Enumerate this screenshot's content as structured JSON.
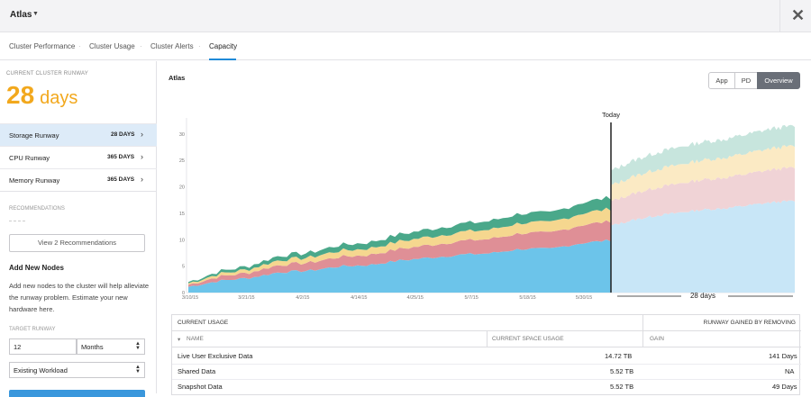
{
  "app": {
    "title": "Atlas",
    "close_label": "✕"
  },
  "tabs": [
    "Cluster Performance",
    "Cluster Usage",
    "Cluster Alerts",
    "Capacity"
  ],
  "sidebar": {
    "current_label": "CURRENT CLUSTER RUNWAY",
    "current_value": "28",
    "current_unit": "days",
    "runways": [
      {
        "name": "Storage Runway",
        "days": "28 DAYS"
      },
      {
        "name": "CPU Runway",
        "days": "365 DAYS"
      },
      {
        "name": "Memory Runway",
        "days": "365 DAYS"
      }
    ],
    "recommendations_label": "RECOMMENDATIONS",
    "recommendations_button": "View 2 Recommendations",
    "add_nodes_title": "Add New Nodes",
    "add_nodes_desc": "Add new nodes to the cluster will help alleviate the runway problem. Estimate your new hardware here.",
    "target_label": "TARGET RUNWAY",
    "target_value": "12",
    "target_unit": "Months",
    "workload_value": "Existing Workload"
  },
  "main": {
    "title": "Atlas",
    "view_buttons": [
      "App",
      "PD",
      "Overview"
    ],
    "active_view": "Overview"
  },
  "chart_data": {
    "type": "area",
    "stacked": true,
    "x_ticks": [
      "3/10/15",
      "3/21/15",
      "4/2/15",
      "4/14/15",
      "4/25/15",
      "5/7/15",
      "5/18/15",
      "5/30/15"
    ],
    "y_ticks": [
      "0",
      "5",
      "10",
      "15",
      "20",
      "25",
      "30"
    ],
    "ylim": [
      0,
      32
    ],
    "today_label": "Today",
    "forecast_label": "28 days",
    "colors": {
      "s1": "#6cc4ea",
      "s2": "#df8f96",
      "s3": "#f5d78f",
      "s4": "#4aa88a",
      "f1": "#c8e6f7",
      "f2": "#f0d3d6",
      "f3": "#fbeac4",
      "f4": "#c7e5dd"
    },
    "top_totals_history": [
      2,
      4,
      5,
      7,
      7.5,
      9,
      9.5,
      11,
      12,
      13,
      13.5,
      15,
      15,
      17,
      18
    ],
    "top_totals_forecast": [
      23,
      25,
      26.5,
      27.5,
      28.5,
      29,
      30,
      31,
      31.5
    ]
  },
  "table": {
    "group_left": "CURRENT USAGE",
    "group_right": "RUNWAY GAINED BY REMOVING",
    "col_name": "NAME",
    "col_space": "CURRENT SPACE USAGE",
    "col_gain": "GAIN",
    "rows": [
      {
        "name": "Live User Exclusive Data",
        "space": "14.72 TB",
        "gain": "141 Days"
      },
      {
        "name": "Shared Data",
        "space": "5.52 TB",
        "gain": "NA"
      },
      {
        "name": "Snapshot Data",
        "space": "5.52 TB",
        "gain": "49 Days"
      }
    ]
  }
}
